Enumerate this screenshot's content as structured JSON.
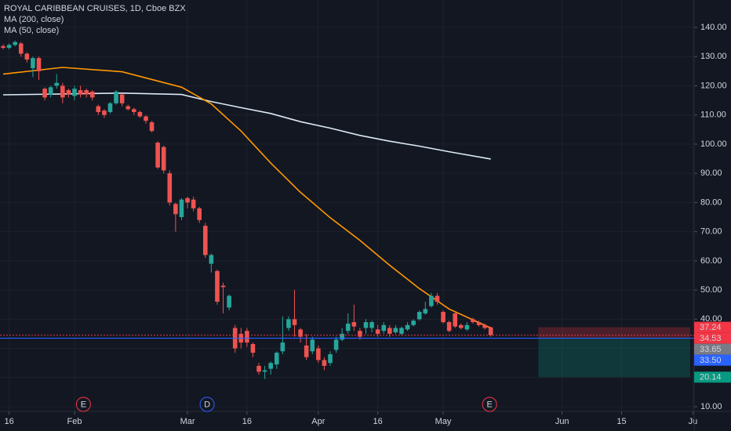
{
  "chart_data": {
    "type": "candlestick",
    "title": "ROYAL CARIBBEAN CRUISES, 1D, Cboe BZX",
    "x": [
      0,
      1,
      2,
      3,
      4,
      5,
      6,
      7,
      8,
      9,
      10,
      11,
      12,
      13,
      14,
      15,
      16,
      17,
      18,
      19,
      20,
      21,
      22,
      23,
      24,
      25,
      26,
      27,
      28,
      29,
      30,
      31,
      32,
      33,
      34,
      35,
      36,
      37,
      38,
      39,
      40,
      41,
      42,
      43,
      44,
      45,
      46,
      47,
      48,
      49,
      50,
      51,
      52,
      53,
      54,
      55,
      56,
      57,
      58,
      59,
      60,
      61,
      62,
      63,
      64,
      65,
      66,
      67,
      68,
      69,
      70,
      71,
      72,
      73,
      74,
      75,
      76,
      77,
      78,
      79,
      80,
      81,
      82
    ],
    "open": [
      133.6,
      133,
      134,
      134.5,
      131,
      126,
      129.5,
      119,
      117,
      120,
      120,
      118.5,
      116.5,
      118.5,
      118.5,
      118,
      113,
      111.5,
      111,
      114,
      117,
      113,
      112,
      111,
      109.5,
      107.5,
      100.5,
      99,
      90,
      79.5,
      75,
      81.5,
      81,
      78,
      72,
      59,
      56.5,
      51.5,
      44,
      37,
      35,
      36,
      31.5,
      24,
      22,
      23,
      24.5,
      29,
      37,
      40,
      36.5,
      31,
      29,
      30,
      26,
      25,
      29.5,
      33,
      36,
      39,
      36,
      37,
      37,
      36.5,
      36,
      37,
      35.5,
      35,
      36.5,
      38,
      40,
      42,
      44.5,
      48,
      42.5,
      39,
      42,
      38,
      36.5,
      40,
      39,
      38,
      37.2
    ],
    "high": [
      134.2,
      134.5,
      135.5,
      135,
      131.5,
      130,
      130,
      119.5,
      120,
      124,
      121,
      119,
      120,
      120,
      119,
      118.5,
      113.5,
      112,
      114.5,
      118.5,
      117.5,
      113.5,
      112.5,
      111.5,
      110,
      108,
      101,
      99.5,
      91,
      80,
      81.5,
      82,
      82,
      78.5,
      73,
      62.5,
      57,
      52.5,
      48.5,
      38,
      37,
      37,
      32,
      25,
      24,
      25.5,
      29,
      41,
      41,
      50,
      37,
      35,
      34,
      31,
      27,
      29,
      34,
      37,
      42,
      45,
      37,
      40,
      39.5,
      38,
      39,
      38,
      38,
      37.5,
      39,
      40,
      43,
      46,
      49,
      49,
      43,
      39.5,
      42.5,
      38.5,
      39,
      40.5,
      39.5,
      38.5,
      37.5
    ],
    "low": [
      132.5,
      132.5,
      133.5,
      130,
      128,
      123,
      122,
      115,
      116,
      119,
      114,
      116,
      115,
      116,
      116,
      115,
      110,
      109,
      110.5,
      113.5,
      113,
      111.5,
      110,
      109,
      107,
      104,
      91.5,
      90,
      79,
      70,
      74,
      78,
      77,
      73,
      61,
      56,
      45,
      42,
      43,
      28.5,
      30,
      30.5,
      27,
      21,
      19.5,
      21,
      23,
      28,
      36,
      34,
      32,
      26,
      28,
      25,
      22.5,
      24,
      28.5,
      32.5,
      35,
      36,
      33,
      35,
      35.5,
      34,
      35,
      34,
      35,
      34.5,
      36,
      37.5,
      39.5,
      41.5,
      44,
      45,
      38.5,
      35.5,
      37,
      36.5,
      36,
      38.5,
      37.5,
      36.5,
      34
    ],
    "close": [
      133,
      134,
      135,
      131,
      129,
      129.5,
      125,
      116,
      119.5,
      121,
      116,
      117,
      119,
      117,
      117,
      116,
      111,
      110,
      114,
      118,
      114,
      112,
      111,
      109.5,
      108,
      104.5,
      92,
      91,
      80,
      76,
      81,
      80,
      78,
      74,
      62,
      62,
      46,
      51,
      48,
      30,
      32,
      32,
      28.5,
      22,
      22.5,
      25,
      28.5,
      32,
      40,
      38,
      34,
      27,
      33,
      26,
      24,
      28,
      33,
      35,
      38.5,
      37.5,
      34,
      39,
      39,
      35,
      38,
      35,
      37,
      37,
      38,
      39.5,
      42.5,
      43.5,
      48,
      46,
      39,
      36,
      37.5,
      37,
      38,
      39,
      38,
      37,
      34.53
    ],
    "up_color": "#26a69a",
    "down_color": "#ef5350",
    "series": [
      {
        "name": "MA (200, close)",
        "color": "#dbe9f7",
        "x": [
          0,
          10,
          20,
          30,
          35,
          40,
          45,
          50,
          55,
          60,
          65,
          70,
          75,
          82
        ],
        "values": [
          116.9,
          117.2,
          117.5,
          117,
          114.6,
          112.5,
          110.5,
          107.7,
          105.5,
          103,
          101,
          99.3,
          97.4,
          94.9
        ]
      },
      {
        "name": "MA (50, close)",
        "color": "#ff9800",
        "x": [
          0,
          10,
          20,
          30,
          35,
          40,
          45,
          50,
          55,
          60,
          65,
          70,
          75,
          82
        ],
        "values": [
          124,
          126.3,
          124.8,
          119.5,
          113.8,
          104.5,
          93.5,
          83.5,
          74.8,
          67,
          58.5,
          50.5,
          43.5,
          37
        ]
      }
    ],
    "xlim": [
      -0.53,
      116.2
    ],
    "xticks": [
      {
        "value": 1,
        "label": "16"
      },
      {
        "value": 12,
        "label": "Feb"
      },
      {
        "value": 31,
        "label": "Mar"
      },
      {
        "value": 41,
        "label": "16"
      },
      {
        "value": 53,
        "label": "Apr"
      },
      {
        "value": 63,
        "label": "16"
      },
      {
        "value": 74,
        "label": "May"
      },
      {
        "value": 94,
        "label": "Jun"
      },
      {
        "value": 104,
        "label": "15"
      },
      {
        "value": 116,
        "label": "Ju"
      }
    ],
    "ylim": [
      8.4,
      149.4
    ],
    "yticks": [
      {
        "value": 10,
        "label": "10.00"
      },
      {
        "value": 20,
        "label": "20.00"
      },
      {
        "value": 30,
        "label": "30.00"
      },
      {
        "value": 40,
        "label": "40.00"
      },
      {
        "value": 50,
        "label": "50.00"
      },
      {
        "value": 60,
        "label": "60.00"
      },
      {
        "value": 70,
        "label": "70.00"
      },
      {
        "value": 80,
        "label": "80.00"
      },
      {
        "value": 90,
        "label": "90.00"
      },
      {
        "value": 100,
        "label": "100.00"
      },
      {
        "value": 110,
        "label": "110.00"
      },
      {
        "value": 120,
        "label": "120.00"
      },
      {
        "value": 130,
        "label": "130.00"
      },
      {
        "value": 140,
        "label": "140.00"
      }
    ],
    "grid": true,
    "price_labels": [
      {
        "value": 37.24,
        "label": "37.24",
        "color": "#f23645"
      },
      {
        "value": 34.53,
        "label": "34.53",
        "color": "#f23645"
      },
      {
        "value": 33.65,
        "label": "33.65",
        "color": "#787b86"
      },
      {
        "value": 33.5,
        "label": "33.50",
        "color": "#2962ff"
      },
      {
        "value": 20.14,
        "label": "20.14",
        "color": "#089981"
      }
    ],
    "events": [
      {
        "label": "E",
        "x": 13.5,
        "color": "#f23645"
      },
      {
        "label": "D",
        "x": 34.3,
        "color": "#2962ff"
      },
      {
        "label": "E",
        "x": 81.8,
        "color": "#f23645"
      }
    ]
  }
}
